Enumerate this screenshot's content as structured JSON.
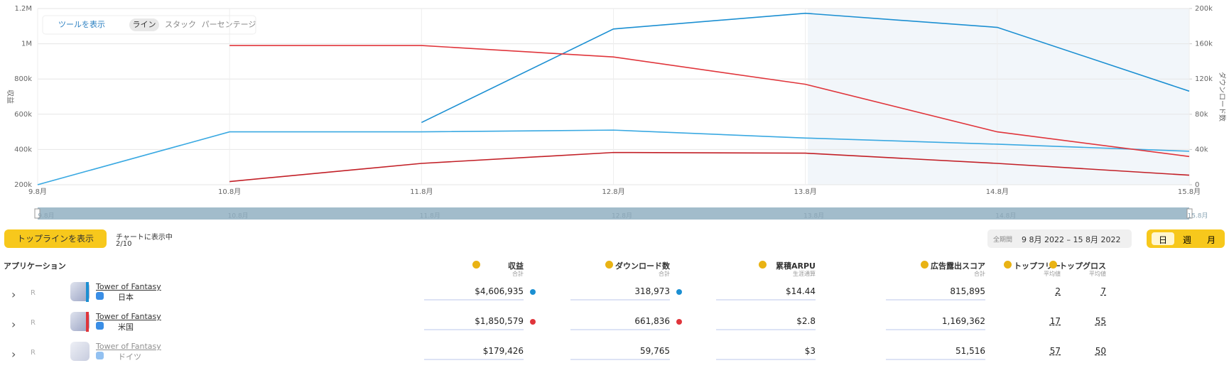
{
  "toolbar": {
    "tools": "ツールを表示",
    "modes": [
      "ライン",
      "スタック",
      "パーセンテージ"
    ]
  },
  "chart_data": {
    "type": "line",
    "y_label": "収益",
    "y2_label": "ダウンロード数",
    "categories": [
      "9.8月",
      "10.8月",
      "11.8月",
      "12.8月",
      "13.8月",
      "14.8月",
      "15.8月"
    ],
    "ylim": [
      200000,
      1200000
    ],
    "yticks": [
      {
        "value": 200000,
        "label": "200k"
      },
      {
        "value": 400000,
        "label": "400k"
      },
      {
        "value": 600000,
        "label": "600k"
      },
      {
        "value": 800000,
        "label": "800k"
      },
      {
        "value": 1000000,
        "label": "1M"
      },
      {
        "value": 1200000,
        "label": "1.2M"
      }
    ],
    "y2lim": [
      0,
      200000
    ],
    "y2ticks": [
      0,
      {
        "value": 40000,
        "label": "40k"
      },
      {
        "value": 80000,
        "label": "80k"
      },
      {
        "value": 120000,
        "label": "120k"
      },
      {
        "value": 160000,
        "label": "160k"
      },
      {
        "value": 200000,
        "label": "200k"
      }
    ],
    "grid": true,
    "series": [
      {
        "color": "#1b8fd2",
        "values": [
          null,
          null,
          553000,
          1084000,
          1173000,
          1093000,
          731000
        ]
      },
      {
        "color": "#3aa9e2",
        "axis": "y2",
        "values": [
          0,
          60000,
          60000,
          62000,
          53000,
          46000,
          38000
        ]
      },
      {
        "color": "#e0353b",
        "axis": "y2",
        "values": [
          null,
          158000,
          158000,
          145000,
          114000,
          60000,
          32000
        ]
      },
      {
        "color": "#c21f26",
        "values": [
          null,
          218000,
          321000,
          383000,
          379000,
          321000,
          254000
        ]
      }
    ]
  },
  "controls": {
    "topline": "トップラインを表示",
    "shown": "チャートに表示中",
    "count": "2/10",
    "period_label": "全期間",
    "period": "9 8月 2022 – 15 8月 2022",
    "granularity": [
      "日",
      "週",
      "月"
    ]
  },
  "table": {
    "app_header": "アプリケーション",
    "columns": [
      {
        "title": "収益",
        "sub": "合計"
      },
      {
        "title": "ダウンロード数",
        "sub": "合計"
      },
      {
        "title": "累積ARPU",
        "sub": "生涯通算"
      },
      {
        "title": "広告露出スコア",
        "sub": "合計"
      },
      {
        "title": "トップフリー",
        "sub": "平均値"
      },
      {
        "title": "トップグロス",
        "sub": "平均値"
      }
    ],
    "rows": [
      {
        "badge": "R",
        "name": "Tower of Fantasy",
        "country": "日本",
        "cells": [
          "$4,606,935",
          "318,973",
          "$14.44",
          "815,895",
          "2",
          "7"
        ]
      },
      {
        "badge": "R",
        "name": "Tower of Fantasy",
        "country": "米国",
        "cells": [
          "$1,850,579",
          "661,836",
          "$2.8",
          "1,169,362",
          "17",
          "55"
        ]
      },
      {
        "badge": "R",
        "name": "Tower of Fantasy",
        "country": "ドイツ",
        "cells": [
          "$179,426",
          "59,765",
          "$3",
          "51,516",
          "57",
          "50"
        ]
      }
    ]
  }
}
